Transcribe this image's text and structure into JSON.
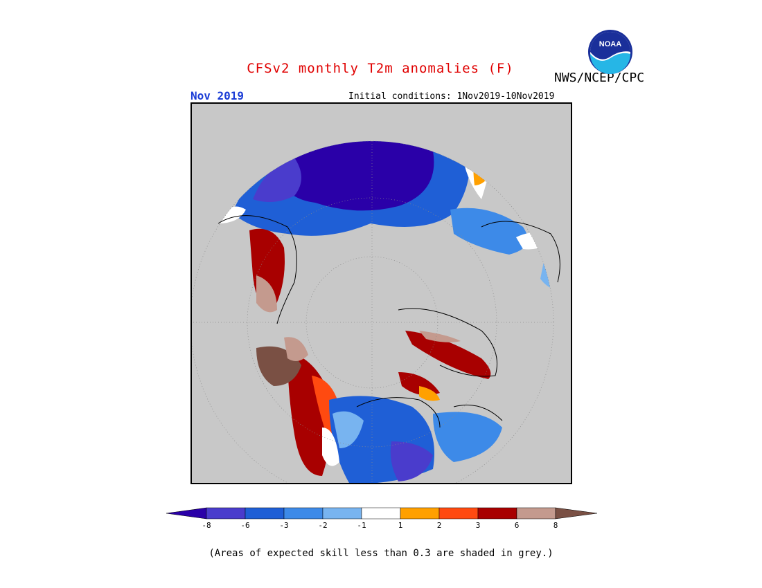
{
  "header": {
    "title": "CFSv2 monthly T2m anomalies (F)",
    "agency": "NWS/NCEP/CPC",
    "month": "Nov 2019",
    "initial_conditions": "Initial conditions: 1Nov2019-10Nov2019",
    "logo_text": "NOAA"
  },
  "colorbar": {
    "colors": [
      "#2a00a8",
      "#4a3ccc",
      "#1f5fd6",
      "#3d8ae8",
      "#78b4f0",
      "#ffffff",
      "#ffa000",
      "#ff4a10",
      "#a80000",
      "#c49a8e",
      "#7a5044"
    ],
    "ticks": [
      "-8",
      "-6",
      "-3",
      "-2",
      "-1",
      "1",
      "2",
      "3",
      "6",
      "8"
    ]
  },
  "footnote": "(Areas of expected skill less than 0.3 are shaded in grey.)",
  "map": {
    "projection": "north-polar-stereographic",
    "skill_mask_color": "#c8c8c8"
  }
}
